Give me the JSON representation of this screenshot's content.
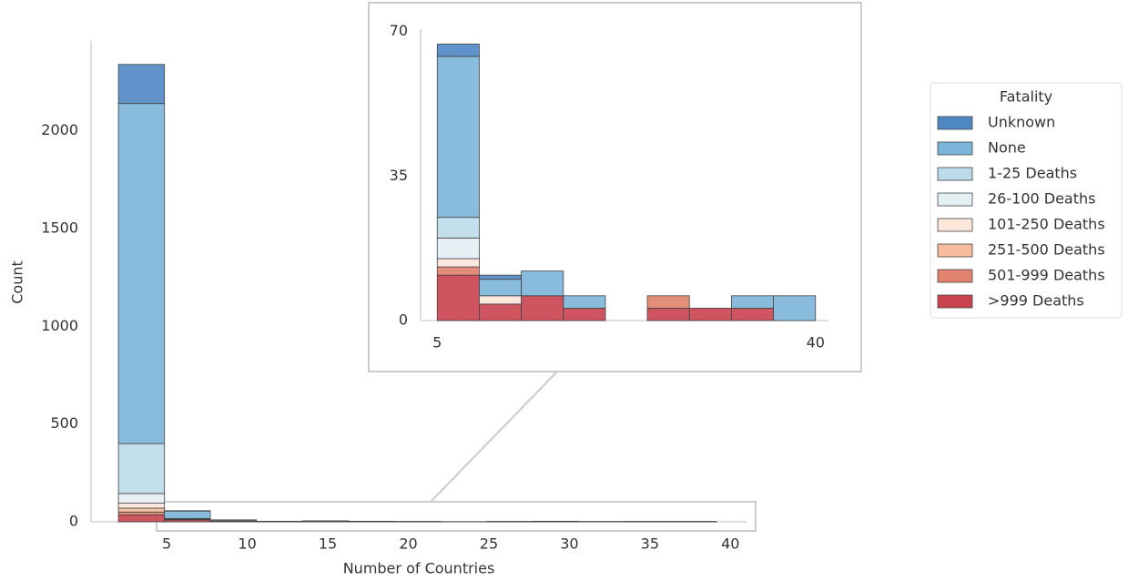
{
  "chart_data": [
    {
      "type": "histogram",
      "xlabel": "Number of Countries",
      "ylabel": "Count",
      "bins": [
        2,
        4.86,
        7.71,
        10.57,
        13.43,
        16.29,
        19.14,
        22,
        24.86,
        27.71,
        30.57,
        33.43,
        36.29,
        39.14
      ],
      "stacked": true,
      "grid": false,
      "xlim": [
        0.3,
        41
      ],
      "ylim": [
        0,
        2460
      ],
      "xticks": [
        5,
        10,
        15,
        20,
        25,
        30,
        35,
        40
      ],
      "yticks": [
        0,
        500,
        1000,
        1500,
        2000
      ],
      "legend_title": "Fatality",
      "legend": "right",
      "series": [
        {
          "name": ">999 Deaths",
          "color": "#c9434f",
          "values": [
            35,
            10,
            4,
            1,
            2,
            1,
            1,
            0,
            1,
            1,
            0,
            1,
            1
          ]
        },
        {
          "name": "501-999 Deaths",
          "color": "#e0826c",
          "values": [
            15,
            2,
            0,
            0,
            0,
            0,
            0,
            0,
            0,
            0,
            0,
            0,
            0
          ]
        },
        {
          "name": "251-500 Deaths",
          "color": "#f5bc9d",
          "values": [
            20,
            1,
            0,
            0,
            0,
            0,
            0,
            0,
            0,
            0,
            0,
            0,
            0
          ]
        },
        {
          "name": "101-250 Deaths",
          "color": "#fbe6da",
          "values": [
            25,
            1,
            0,
            0,
            0,
            0,
            0,
            0,
            0,
            0,
            0,
            0,
            0
          ]
        },
        {
          "name": "26-100 Deaths",
          "color": "#e4eff4",
          "values": [
            50,
            1,
            0,
            0,
            0,
            0,
            0,
            0,
            0,
            0,
            0,
            0,
            0
          ]
        },
        {
          "name": "1-25 Deaths",
          "color": "#bcdbea",
          "values": [
            255,
            2,
            1,
            0,
            0,
            0,
            0,
            0,
            0,
            0,
            0,
            0,
            0
          ]
        },
        {
          "name": "None",
          "color": "#7bb4d8",
          "values": [
            1740,
            38,
            5,
            2,
            3,
            2,
            1,
            1,
            1,
            2,
            2,
            1,
            1
          ]
        },
        {
          "name": "Unknown",
          "color": "#4f87c3",
          "values": [
            200,
            2,
            0,
            0,
            0,
            0,
            0,
            0,
            0,
            0,
            0,
            0,
            0
          ]
        }
      ]
    },
    {
      "type": "histogram",
      "bins": [
        5,
        8.89,
        12.78,
        16.67,
        20.56,
        24.44,
        28.33,
        32.22,
        36.11,
        40
      ],
      "stacked": true,
      "grid": false,
      "xlim": [
        3.46,
        41.2
      ],
      "ylim": [
        0,
        70.6
      ],
      "xticks": [
        5,
        40
      ],
      "yticks": [
        0,
        35,
        70
      ],
      "series": [
        {
          "color": "#c9434f",
          "values": [
            11,
            4,
            6,
            3,
            0,
            3,
            3,
            3,
            0
          ]
        },
        {
          "color": "#e0826c",
          "values": [
            2,
            0,
            0,
            0,
            0,
            3,
            0,
            0,
            0
          ]
        },
        {
          "color": "#f5bc9d",
          "values": [
            0,
            0,
            0,
            0,
            0,
            0,
            0,
            0,
            0
          ]
        },
        {
          "color": "#fbe6da",
          "values": [
            2,
            2,
            0,
            0,
            0,
            0,
            0,
            0,
            0
          ]
        },
        {
          "color": "#e4eff4",
          "values": [
            5,
            0,
            0,
            0,
            0,
            0,
            0,
            0,
            0
          ]
        },
        {
          "color": "#bcdbea",
          "values": [
            5,
            0,
            0,
            0,
            0,
            0,
            0,
            0,
            0
          ]
        },
        {
          "color": "#7bb4d8",
          "values": [
            39,
            4,
            6,
            3,
            0,
            0,
            0,
            3,
            6
          ]
        },
        {
          "color": "#4f87c3",
          "values": [
            3,
            1,
            0,
            0,
            0,
            0,
            0,
            0,
            0
          ]
        }
      ]
    }
  ]
}
